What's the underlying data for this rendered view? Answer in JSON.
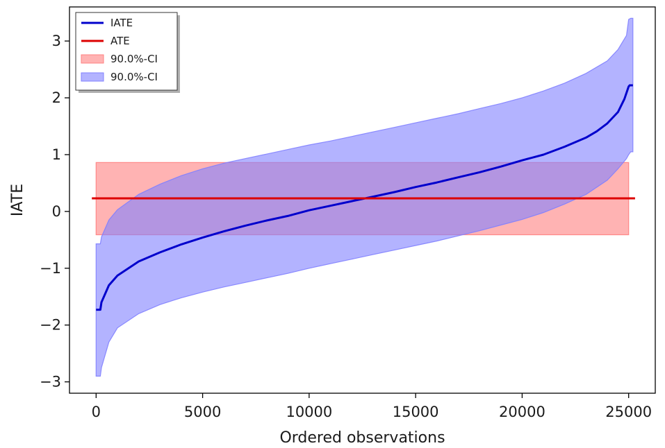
{
  "chart_data": {
    "type": "line",
    "title": "",
    "xlabel": "Ordered observations",
    "ylabel": "IATE",
    "xlim": [
      -1250,
      26250
    ],
    "ylim": [
      -3.2,
      3.6
    ],
    "x_ticks": [
      0,
      5000,
      10000,
      15000,
      20000,
      25000
    ],
    "x_tick_labels": [
      "0",
      "5000",
      "10000",
      "15000",
      "20000",
      "25000"
    ],
    "y_ticks": [
      -3,
      -2,
      -1,
      0,
      1,
      2,
      3
    ],
    "y_tick_labels": [
      "−3",
      "−2",
      "−1",
      "0",
      "1",
      "2",
      "3"
    ],
    "grid": false,
    "legend_position": "top-left",
    "legend": [
      {
        "label": "IATE",
        "kind": "line",
        "color": "#0000cc"
      },
      {
        "label": "ATE",
        "kind": "line",
        "color": "#dd0000"
      },
      {
        "label": "90.0%-CI",
        "kind": "patch",
        "color": "#ff8080"
      },
      {
        "label": "90.0%-CI",
        "kind": "patch",
        "color": "#8080ff"
      }
    ],
    "series": [
      {
        "name": "IATE",
        "color": "#0000cc",
        "x": [
          0,
          200,
          250,
          600,
          1000,
          2000,
          3000,
          4000,
          5000,
          6000,
          7000,
          8000,
          9000,
          10000,
          11000,
          12000,
          13000,
          14000,
          15000,
          16000,
          17000,
          18000,
          19000,
          20000,
          21000,
          22000,
          23000,
          23500,
          24000,
          24500,
          24800,
          25000,
          25050,
          25200
        ],
        "y": [
          -1.73,
          -1.73,
          -1.6,
          -1.3,
          -1.13,
          -0.88,
          -0.72,
          -0.58,
          -0.46,
          -0.35,
          -0.25,
          -0.16,
          -0.08,
          0.02,
          0.1,
          0.18,
          0.26,
          0.34,
          0.43,
          0.51,
          0.6,
          0.69,
          0.79,
          0.9,
          1.0,
          1.14,
          1.3,
          1.41,
          1.55,
          1.75,
          1.98,
          2.2,
          2.22,
          2.22
        ]
      },
      {
        "name": "ATE",
        "color": "#dd0000",
        "x": [
          -200,
          25300
        ],
        "y": [
          0.23,
          0.23
        ]
      }
    ],
    "bands": [
      {
        "name": "90.0%-CI",
        "color": "#ff8080",
        "x": [
          0,
          25000
        ],
        "lower": [
          -0.41,
          -0.41
        ],
        "upper": [
          0.86,
          0.86
        ]
      },
      {
        "name": "90.0%-CI",
        "color": "#8080ff",
        "x": [
          0,
          200,
          250,
          600,
          1000,
          2000,
          3000,
          4000,
          5000,
          6000,
          7000,
          8000,
          9000,
          10000,
          11000,
          12000,
          13000,
          14000,
          15000,
          16000,
          17000,
          18000,
          19000,
          20000,
          21000,
          22000,
          23000,
          24000,
          24500,
          24900,
          25000,
          25100,
          25200
        ],
        "lower": [
          -2.9,
          -2.9,
          -2.75,
          -2.3,
          -2.05,
          -1.8,
          -1.64,
          -1.52,
          -1.42,
          -1.33,
          -1.25,
          -1.17,
          -1.09,
          -1.0,
          -0.92,
          -0.84,
          -0.76,
          -0.68,
          -0.6,
          -0.52,
          -0.43,
          -0.34,
          -0.24,
          -0.14,
          -0.02,
          0.13,
          0.3,
          0.55,
          0.75,
          0.93,
          1.0,
          1.05,
          1.05
        ],
        "upper": [
          -0.57,
          -0.57,
          -0.45,
          -0.15,
          0.03,
          0.3,
          0.48,
          0.63,
          0.75,
          0.85,
          0.93,
          1.01,
          1.09,
          1.17,
          1.24,
          1.32,
          1.4,
          1.48,
          1.56,
          1.64,
          1.72,
          1.81,
          1.9,
          2.0,
          2.12,
          2.26,
          2.43,
          2.65,
          2.85,
          3.1,
          3.38,
          3.4,
          3.4
        ]
      }
    ]
  }
}
